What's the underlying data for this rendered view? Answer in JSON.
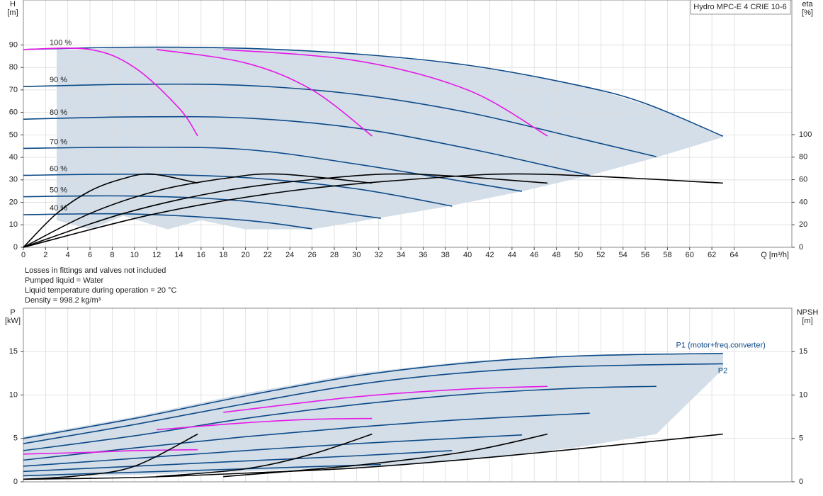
{
  "chart_data": [
    {
      "type": "line",
      "title": "Hydro MPC-E 4 CRIE 10-6",
      "ylabel": "H",
      "yunit": "[m]",
      "y2label": "eta",
      "y2unit": "[%]",
      "xlabel": "Q [m³/h]",
      "notes": [
        "Losses in fittings and valves not included",
        "Pumped liquid = Water",
        "Liquid temperature during operation = 20 °C",
        "Density = 998.2 kg/m³"
      ],
      "xlim": [
        0,
        69.2
      ],
      "xticks": [
        0,
        2,
        4,
        6,
        8,
        10,
        12,
        14,
        16,
        18,
        20,
        22,
        24,
        26,
        28,
        30,
        32,
        34,
        36,
        38,
        40,
        42,
        44,
        46,
        48,
        50,
        52,
        54,
        56,
        58,
        60,
        62,
        64
      ],
      "ylim": [
        0,
        110
      ],
      "yticks": [
        0,
        10,
        20,
        30,
        40,
        50,
        60,
        70,
        80,
        90
      ],
      "y2lim": [
        0,
        219.5
      ],
      "y2ticks": [
        0,
        20,
        40,
        60,
        80,
        100
      ],
      "grid": true,
      "band": {
        "color": "#c8d6e4",
        "x": [
          3,
          6,
          9,
          13,
          16,
          20,
          26,
          32,
          38,
          45,
          51,
          57,
          63
        ],
        "lower": [
          12,
          8,
          14,
          8,
          12,
          8,
          8,
          13,
          18,
          25,
          32,
          40,
          49
        ],
        "upper": [
          88,
          88,
          89,
          89,
          89,
          88.5,
          87.5,
          85,
          82,
          77,
          71,
          62,
          49
        ]
      },
      "series": [
        {
          "name": "100 %",
          "color": "#0d4a87",
          "x": [
            0,
            10,
            20,
            30,
            40,
            50,
            56,
            63
          ],
          "values": [
            88,
            89,
            88.5,
            86,
            81,
            72,
            64,
            49.4
          ]
        },
        {
          "name": "90 %",
          "color": "#0d4a87",
          "x": [
            0,
            10,
            20,
            30,
            40,
            50,
            57
          ],
          "values": [
            71.5,
            72.5,
            72,
            68,
            60,
            48.5,
            40.3
          ]
        },
        {
          "name": "80 %",
          "color": "#0d4a87",
          "x": [
            0,
            10,
            20,
            30,
            40,
            51
          ],
          "values": [
            57,
            58,
            57.5,
            53,
            44,
            32
          ]
        },
        {
          "name": "70 %",
          "color": "#0d4a87",
          "x": [
            0,
            10,
            20,
            30,
            44.9
          ],
          "values": [
            44,
            44.5,
            43.5,
            37,
            24.9
          ]
        },
        {
          "name": "60 %",
          "color": "#0d4a87",
          "x": [
            0,
            10,
            20,
            30,
            38.6
          ],
          "values": [
            32,
            32.5,
            31,
            26,
            18.3
          ]
        },
        {
          "name": "50 %",
          "color": "#0d4a87",
          "x": [
            0,
            10,
            20,
            32.2
          ],
          "values": [
            22.5,
            22.8,
            20.5,
            12.9
          ]
        },
        {
          "name": "40 %",
          "color": "#0d4a87",
          "x": [
            0,
            10,
            20,
            26
          ],
          "values": [
            14.5,
            14.8,
            12,
            8.2
          ]
        },
        {
          "color": "#e619e6",
          "x": [
            0,
            6,
            10,
            14,
            15.7
          ],
          "values": [
            88,
            88,
            80,
            62,
            49.5
          ]
        },
        {
          "color": "#e619e6",
          "x": [
            12,
            20,
            26,
            31.4
          ],
          "values": [
            88,
            82,
            70,
            49.5
          ]
        },
        {
          "color": "#e619e6",
          "x": [
            18,
            30,
            40,
            47.2
          ],
          "values": [
            88,
            83,
            70,
            49.5
          ]
        },
        {
          "color": "#000000",
          "axis": "y2",
          "x": [
            0,
            3,
            6,
            9,
            11.6,
            15.7
          ],
          "values": [
            0,
            30,
            50,
            61,
            65,
            57
          ]
        },
        {
          "color": "#000000",
          "axis": "y2",
          "x": [
            0,
            6,
            12,
            18,
            23,
            31.4
          ],
          "values": [
            0,
            30,
            50,
            61,
            65,
            57
          ]
        },
        {
          "color": "#000000",
          "axis": "y2",
          "x": [
            0,
            9,
            18,
            27,
            35,
            47.2
          ],
          "values": [
            0,
            30,
            50,
            61,
            65,
            57
          ]
        },
        {
          "color": "#000000",
          "axis": "y2",
          "x": [
            0,
            12,
            24,
            36,
            46,
            63
          ],
          "values": [
            0,
            30,
            50,
            61,
            65,
            57
          ]
        }
      ]
    },
    {
      "type": "line",
      "ylabel": "P",
      "yunit": "[kW]",
      "y2label": "NPSH",
      "y2unit": "[m]",
      "xlim": [
        0,
        69.2
      ],
      "xticks": [
        0,
        2,
        4,
        6,
        8,
        10,
        12,
        14,
        16,
        18,
        20,
        22,
        24,
        26,
        28,
        30,
        32,
        34,
        36,
        38,
        40,
        42,
        44,
        46,
        48,
        50,
        52,
        54,
        56,
        58,
        60,
        62,
        64
      ],
      "ylim": [
        0,
        20
      ],
      "yticks": [
        0,
        5,
        10,
        15
      ],
      "y2lim": [
        0,
        20
      ],
      "y2ticks": [
        0,
        5,
        10,
        15
      ],
      "grid": true,
      "band": {
        "color": "#c8d6e4",
        "x": [
          0,
          10,
          20,
          30,
          40,
          50,
          57,
          63
        ],
        "lower": [
          0.5,
          0.8,
          1.2,
          1.7,
          2.5,
          4,
          5.5,
          13
        ],
        "upper": [
          5.2,
          7.5,
          10.2,
          12.5,
          13.9,
          14.6,
          14.8,
          14.8
        ]
      },
      "series": [
        {
          "name": "P1 (motor+freq.converter)",
          "color": "#0d4a87",
          "x": [
            0,
            10,
            20,
            30,
            40,
            50,
            63
          ],
          "values": [
            5,
            7.3,
            9.9,
            12.2,
            13.7,
            14.5,
            14.8
          ]
        },
        {
          "name": "P2",
          "color": "#0d4a87",
          "x": [
            0,
            10,
            20,
            30,
            40,
            50,
            63
          ],
          "values": [
            4.4,
            6.6,
            9,
            11.2,
            12.6,
            13.3,
            13.6
          ]
        },
        {
          "color": "#0d4a87",
          "x": [
            0,
            10,
            20,
            30,
            40,
            50,
            57
          ],
          "values": [
            3.6,
            5.3,
            7.3,
            8.9,
            10.1,
            10.8,
            11
          ]
        },
        {
          "color": "#0d4a87",
          "x": [
            0,
            10,
            20,
            30,
            40,
            51
          ],
          "values": [
            2.5,
            3.9,
            5.2,
            6.3,
            7.2,
            7.9
          ]
        },
        {
          "color": "#0d4a87",
          "x": [
            0,
            10,
            20,
            30,
            44.9
          ],
          "values": [
            1.8,
            2.7,
            3.6,
            4.4,
            5.4
          ]
        },
        {
          "color": "#0d4a87",
          "x": [
            0,
            10,
            20,
            30,
            38.6
          ],
          "values": [
            1.2,
            1.8,
            2.4,
            3,
            3.6
          ]
        },
        {
          "color": "#0d4a87",
          "x": [
            0,
            10,
            20,
            32.2
          ],
          "values": [
            0.7,
            1.1,
            1.5,
            2
          ]
        },
        {
          "color": "#e619e6",
          "x": [
            0,
            6,
            10,
            15.7
          ],
          "values": [
            3.2,
            3.4,
            3.6,
            3.7
          ]
        },
        {
          "color": "#e619e6",
          "x": [
            12,
            20,
            26,
            31.4
          ],
          "values": [
            6,
            6.8,
            7.2,
            7.3
          ]
        },
        {
          "color": "#e619e6",
          "x": [
            18,
            30,
            40,
            47.2
          ],
          "values": [
            8,
            9.8,
            10.7,
            11
          ]
        },
        {
          "color": "#000000",
          "axis": "y2",
          "x": [
            0,
            5,
            10,
            15.7
          ],
          "values": [
            0.3,
            0.7,
            1.8,
            5.5
          ]
        },
        {
          "color": "#000000",
          "axis": "y2",
          "x": [
            12,
            20,
            26,
            31.4
          ],
          "values": [
            0.6,
            1.5,
            3.2,
            5.5
          ]
        },
        {
          "color": "#000000",
          "axis": "y2",
          "x": [
            18,
            30,
            40,
            47.2
          ],
          "values": [
            0.6,
            1.9,
            3.5,
            5.5
          ]
        },
        {
          "color": "#000000",
          "axis": "y2",
          "x": [
            0,
            10,
            20,
            30,
            40,
            50,
            63
          ],
          "values": [
            0.3,
            0.5,
            1,
            1.6,
            2.6,
            3.8,
            5.5
          ]
        }
      ]
    }
  ]
}
